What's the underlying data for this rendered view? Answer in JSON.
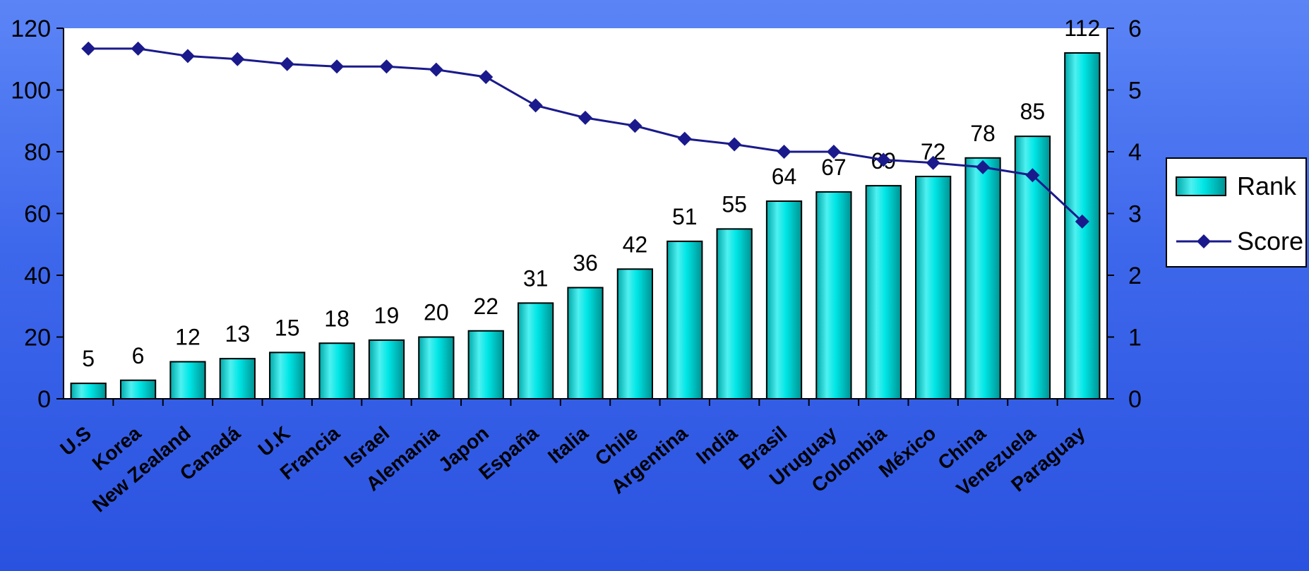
{
  "chart_data": {
    "type": "bar",
    "categories": [
      "U.S",
      "Korea",
      "New Zealand",
      "Canadá",
      "U.K",
      "Francia",
      "Israel",
      "Alemania",
      "Japon",
      "España",
      "Italia",
      "Chile",
      "Argentina",
      "India",
      "Brasil",
      "Uruguay",
      "Colombia",
      "México",
      "China",
      "Venezuela",
      "Paraguay"
    ],
    "series": [
      {
        "name": "Rank",
        "type": "bar",
        "axis": "left",
        "color": "#00d8d8",
        "values": [
          5,
          6,
          12,
          13,
          15,
          18,
          19,
          20,
          22,
          31,
          36,
          42,
          51,
          55,
          64,
          67,
          69,
          72,
          78,
          85,
          112
        ],
        "labels": [
          "5",
          "6",
          "12",
          "13",
          "15",
          "18",
          "19",
          "20",
          "22",
          "31",
          "36",
          "42",
          "51",
          "55",
          "64",
          "67",
          "69",
          "72",
          "78",
          "85",
          "112"
        ]
      },
      {
        "name": "Score",
        "type": "line",
        "axis": "right",
        "color": "#1a1a8c",
        "marker": "diamond",
        "values": [
          5.67,
          5.67,
          5.55,
          5.5,
          5.42,
          5.38,
          5.38,
          5.33,
          5.21,
          4.75,
          4.55,
          4.42,
          4.21,
          4.12,
          4.0,
          4.0,
          3.87,
          3.82,
          3.75,
          3.62,
          2.87
        ]
      }
    ],
    "y_left": {
      "range": [
        0,
        120
      ],
      "ticks": [
        "0",
        "20",
        "40",
        "60",
        "80",
        "100",
        "120"
      ]
    },
    "y_right": {
      "range": [
        0,
        6
      ],
      "ticks": [
        "0",
        "1",
        "2",
        "3",
        "4",
        "5",
        "6"
      ]
    },
    "title": "",
    "xlabel": "",
    "ylabel": "",
    "grid": false,
    "legend": {
      "position": "right",
      "entries": [
        "Rank",
        "Score"
      ]
    },
    "background": "#4a72f0",
    "plot_background": "#ffffff"
  }
}
